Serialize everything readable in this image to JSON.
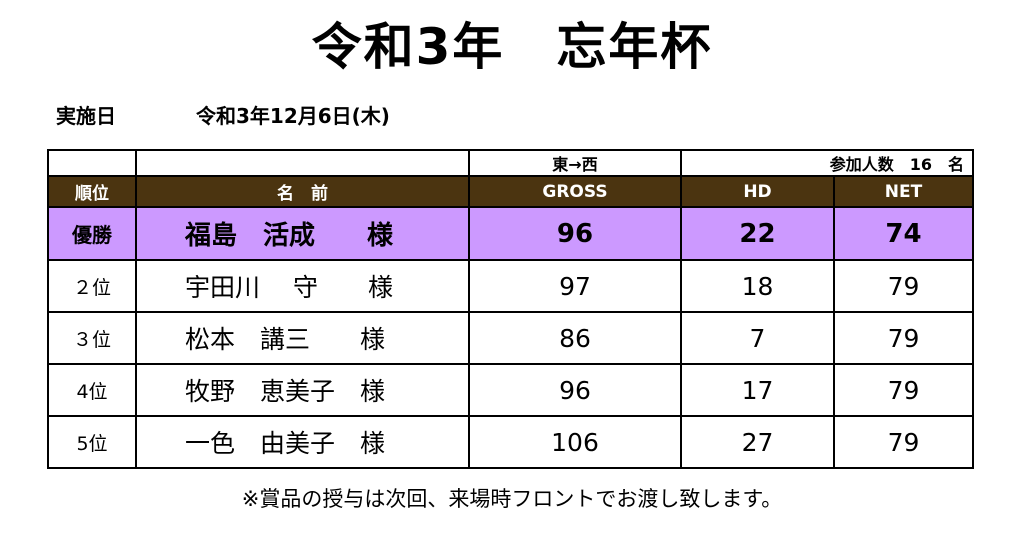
{
  "title": "令和3年　忘年杯",
  "date": {
    "label": "実施日",
    "value": "令和3年12月6日(木)"
  },
  "table": {
    "info": {
      "course": "東→西",
      "participants": "参加人数　16　名"
    },
    "headers": {
      "rank": "順位",
      "name": "名　前",
      "gross": "GROSS",
      "hd": "HD",
      "net": "NET"
    },
    "rows": [
      {
        "rank": "優勝",
        "name": "福島　活成　　様",
        "gross": "96",
        "hd": "22",
        "net": "74"
      },
      {
        "rank": "２位",
        "name": "宇田川　 守　　様",
        "gross": "97",
        "hd": "18",
        "net": "79"
      },
      {
        "rank": "３位",
        "name": "松本　講三　　様",
        "gross": "86",
        "hd": "7",
        "net": "79"
      },
      {
        "rank": "4位",
        "name": "牧野　恵美子　様",
        "gross": "96",
        "hd": "17",
        "net": "79"
      },
      {
        "rank": "5位",
        "name": "一色　由美子　様",
        "gross": "106",
        "hd": "27",
        "net": "79"
      }
    ]
  },
  "note": "※賞品の授与は次回、来場時フロントでお渡し致します。",
  "colors": {
    "header_bg": "#4b3410",
    "winner_bg": "#cc99ff"
  }
}
